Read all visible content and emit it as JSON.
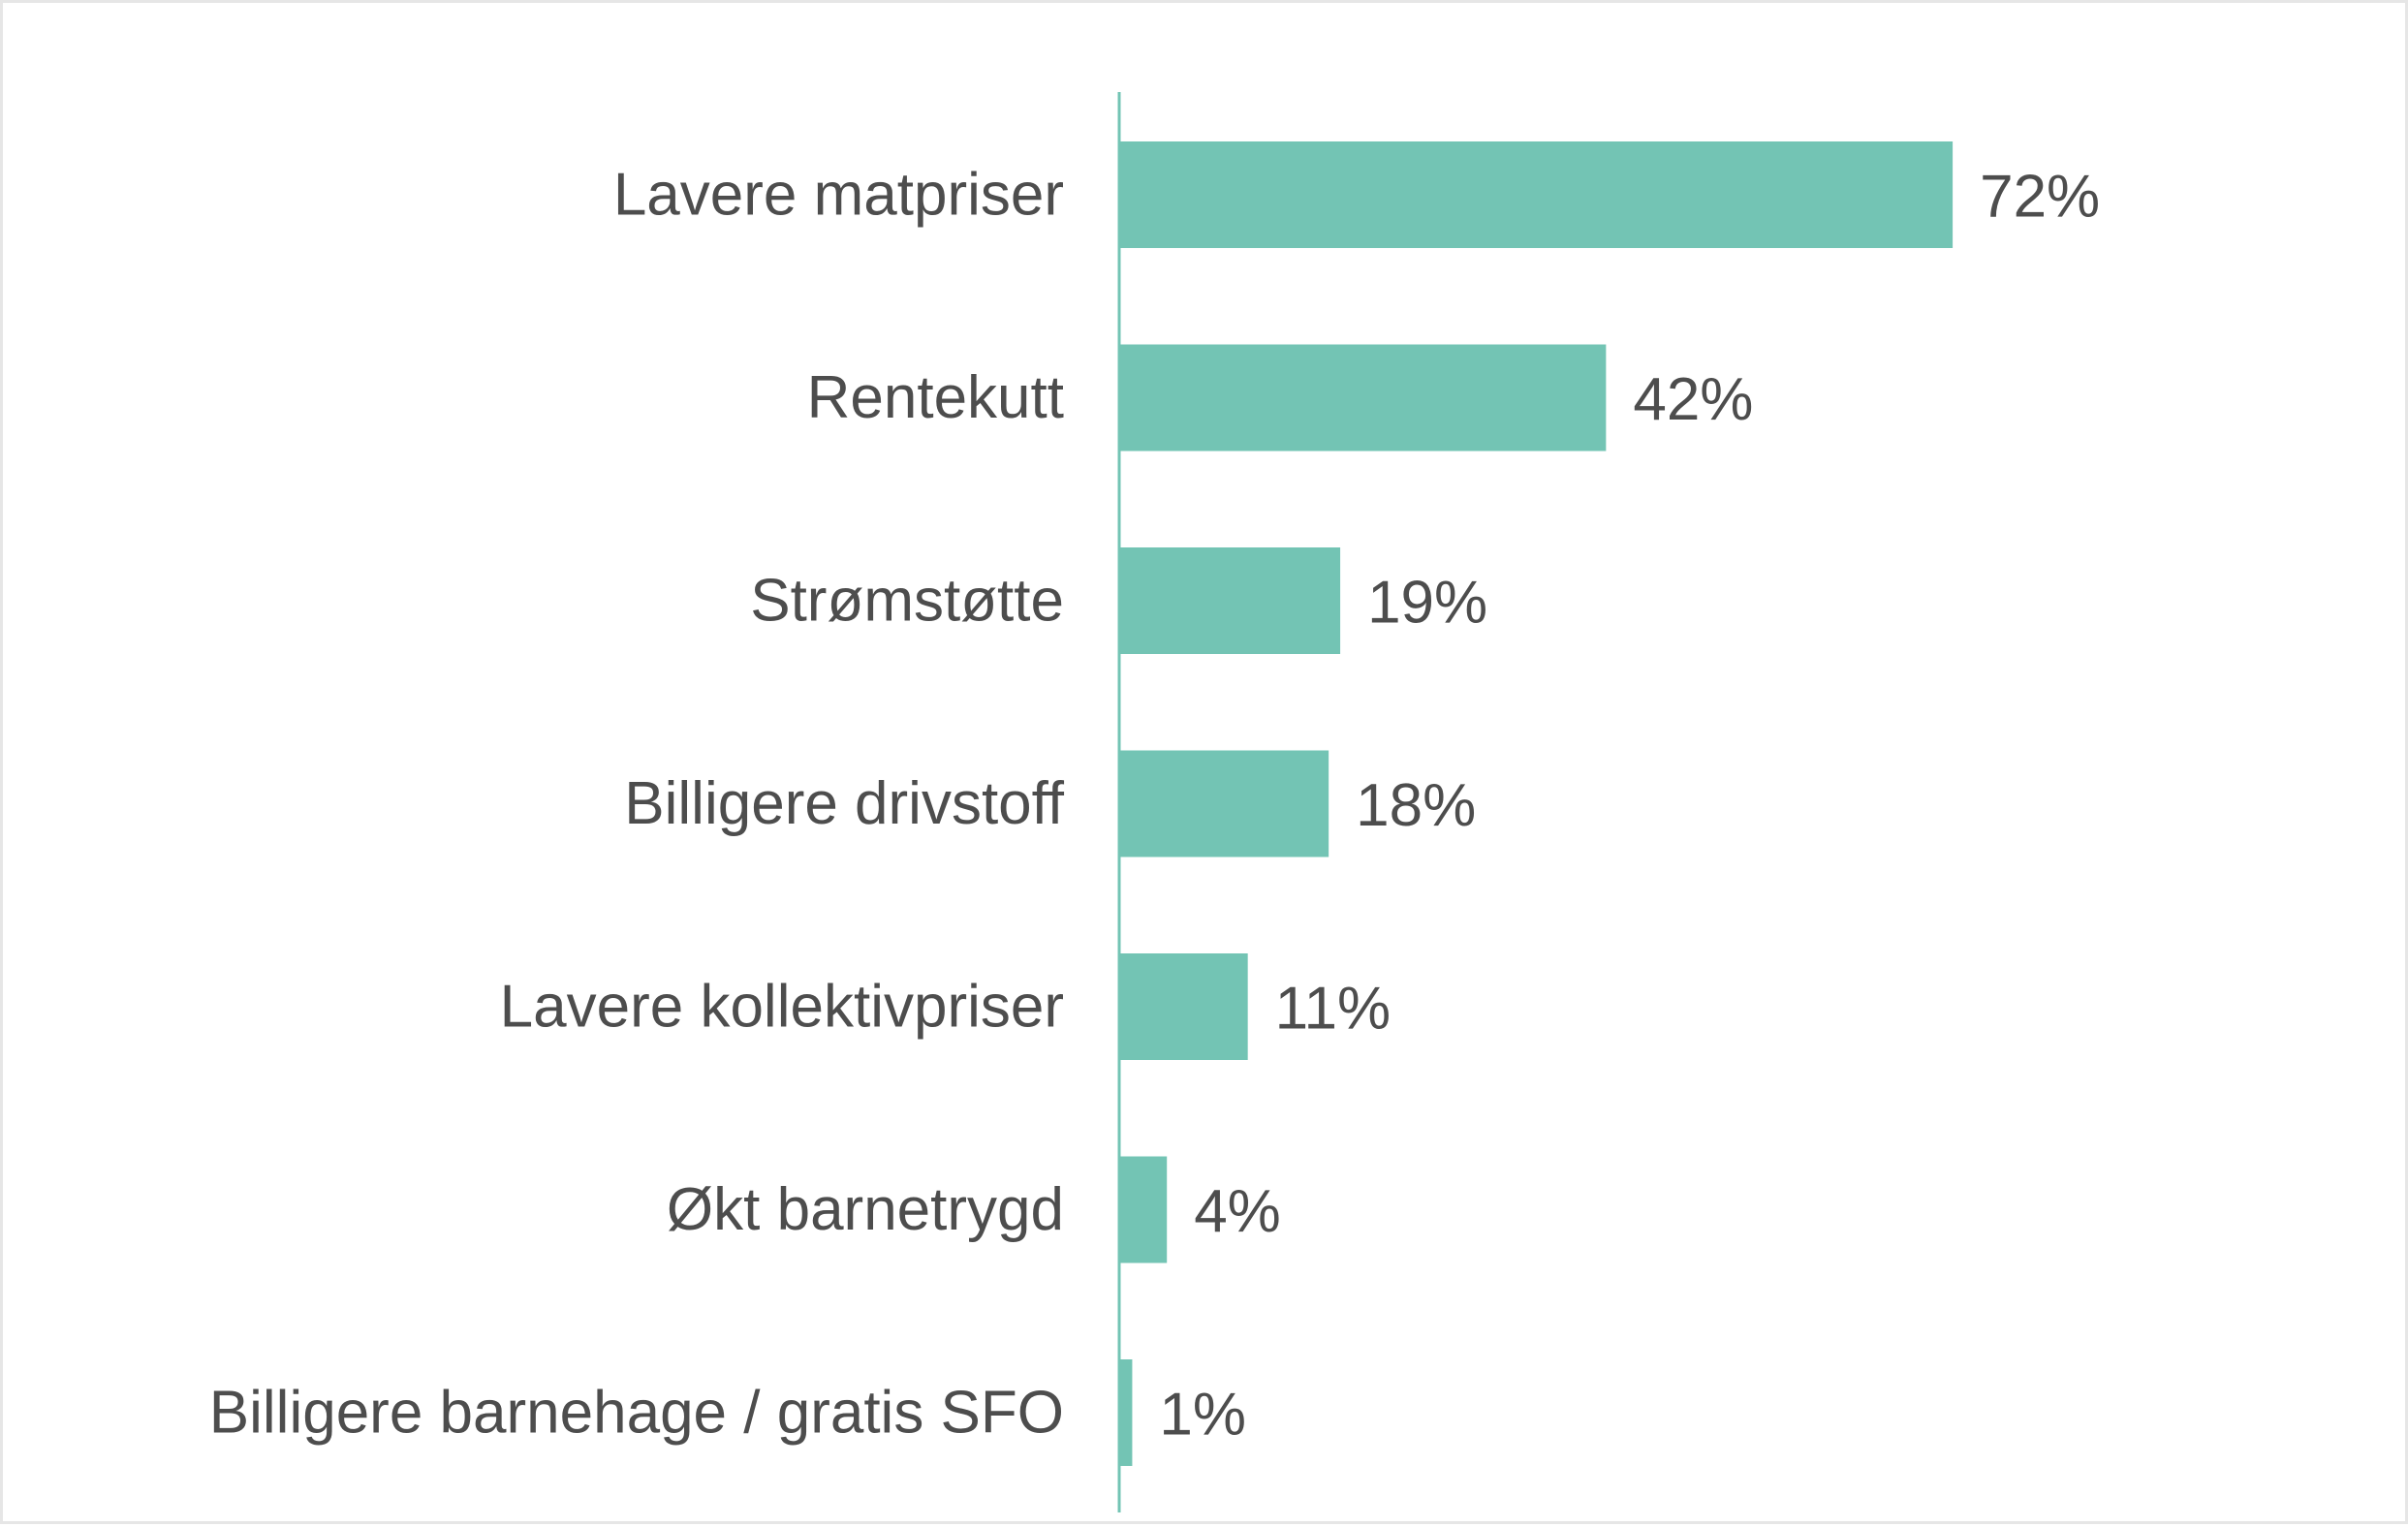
{
  "chart_data": {
    "type": "bar",
    "orientation": "horizontal",
    "categories": [
      "Lavere matpriser",
      "Rentekutt",
      "Strømstøtte",
      "Billigere drivstoff",
      "Lavere kollektivpriser",
      "Økt barnetrygd",
      "Billigere barnehage / gratis SFO"
    ],
    "values": [
      72,
      42,
      19,
      18,
      11,
      4,
      1
    ],
    "value_labels": [
      "72%",
      "42%",
      "19%",
      "18%",
      "11%",
      "4%",
      "1%"
    ],
    "unit": "%",
    "title": "",
    "xlabel": "",
    "ylabel": "",
    "xlim": [
      0,
      100
    ],
    "grid": false,
    "legend": "none",
    "colors": {
      "bar": "#73c4b4",
      "axis": "#73c4b4",
      "text": "#4d4d4d"
    }
  }
}
